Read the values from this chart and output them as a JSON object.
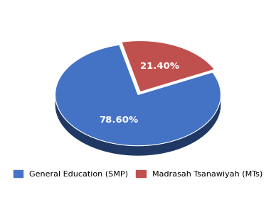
{
  "labels": [
    "78.60%",
    "21.40%"
  ],
  "values": [
    78.6,
    21.4
  ],
  "colors": [
    "#4472C4",
    "#C0504D"
  ],
  "shadow_colors": [
    "#1F3864",
    "#7B1E1E"
  ],
  "legend_labels": [
    "General Education (SMP)",
    "Madrasah Tsanawiyah (MTs)"
  ],
  "explode": [
    0.0,
    0.06
  ],
  "text_color": "white",
  "label_fontsize": 9.5,
  "legend_fontsize": 8,
  "startangle": 103,
  "depth": 0.12,
  "yscale": 0.62
}
